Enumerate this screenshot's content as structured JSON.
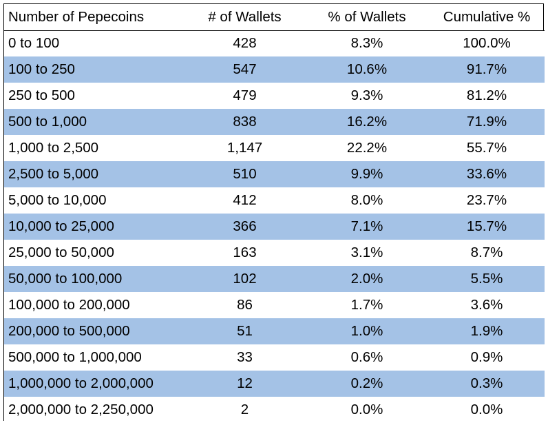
{
  "chart_data": {
    "type": "table",
    "colors": {
      "band": "#a4c2e6",
      "plain": "#ffffff",
      "border": "#000000"
    },
    "columns": [
      "Number of Pepecoins",
      "# of Wallets",
      "% of Wallets",
      "Cumulative %"
    ],
    "rows": [
      [
        "0 to 100",
        "428",
        "8.3%",
        "100.0%"
      ],
      [
        "100 to 250",
        "547",
        "10.6%",
        "91.7%"
      ],
      [
        "250 to 500",
        "479",
        "9.3%",
        "81.2%"
      ],
      [
        "500 to 1,000",
        "838",
        "16.2%",
        "71.9%"
      ],
      [
        "1,000 to 2,500",
        "1,147",
        "22.2%",
        "55.7%"
      ],
      [
        "2,500 to 5,000",
        "510",
        "9.9%",
        "33.6%"
      ],
      [
        "5,000 to 10,000",
        "412",
        "8.0%",
        "23.7%"
      ],
      [
        "10,000 to 25,000",
        "366",
        "7.1%",
        "15.7%"
      ],
      [
        "25,000 to 50,000",
        "163",
        "3.1%",
        "8.7%"
      ],
      [
        "50,000 to 100,000",
        "102",
        "2.0%",
        "5.5%"
      ],
      [
        "100,000 to 200,000",
        "86",
        "1.7%",
        "3.6%"
      ],
      [
        "200,000 to 500,000",
        "51",
        "1.0%",
        "1.9%"
      ],
      [
        "500,000 to 1,000,000",
        "33",
        "0.6%",
        "0.9%"
      ],
      [
        "1,000,000 to 2,000,000",
        "12",
        "0.2%",
        "0.3%"
      ],
      [
        "2,000,000 to 2,250,000",
        "2",
        "0.0%",
        "0.0%"
      ]
    ]
  }
}
